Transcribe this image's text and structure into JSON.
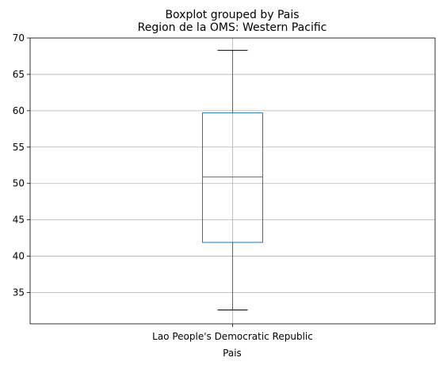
{
  "chart_data": {
    "type": "boxplot",
    "suptitle": "Boxplot grouped by Pais",
    "title": "Region de la OMS: Western Pacific",
    "xlabel": "Pais",
    "ylabel": "",
    "ylim": [
      30.7,
      70
    ],
    "yticks": [
      35,
      40,
      45,
      50,
      55,
      60,
      65,
      70
    ],
    "grid": true,
    "categories": [
      "Lao People's Democratic Republic"
    ],
    "boxes": [
      {
        "category": "Lao People's Democratic Republic",
        "whisker_low": 32.6,
        "q1": 41.9,
        "median": 50.9,
        "q3": 59.7,
        "whisker_high": 68.3
      }
    ],
    "colors": {
      "box": "#1f77b4",
      "median": "#2ca02c",
      "whisker": "#1f77b4",
      "cap": "#000000",
      "grid": "#b0b0b0"
    }
  }
}
